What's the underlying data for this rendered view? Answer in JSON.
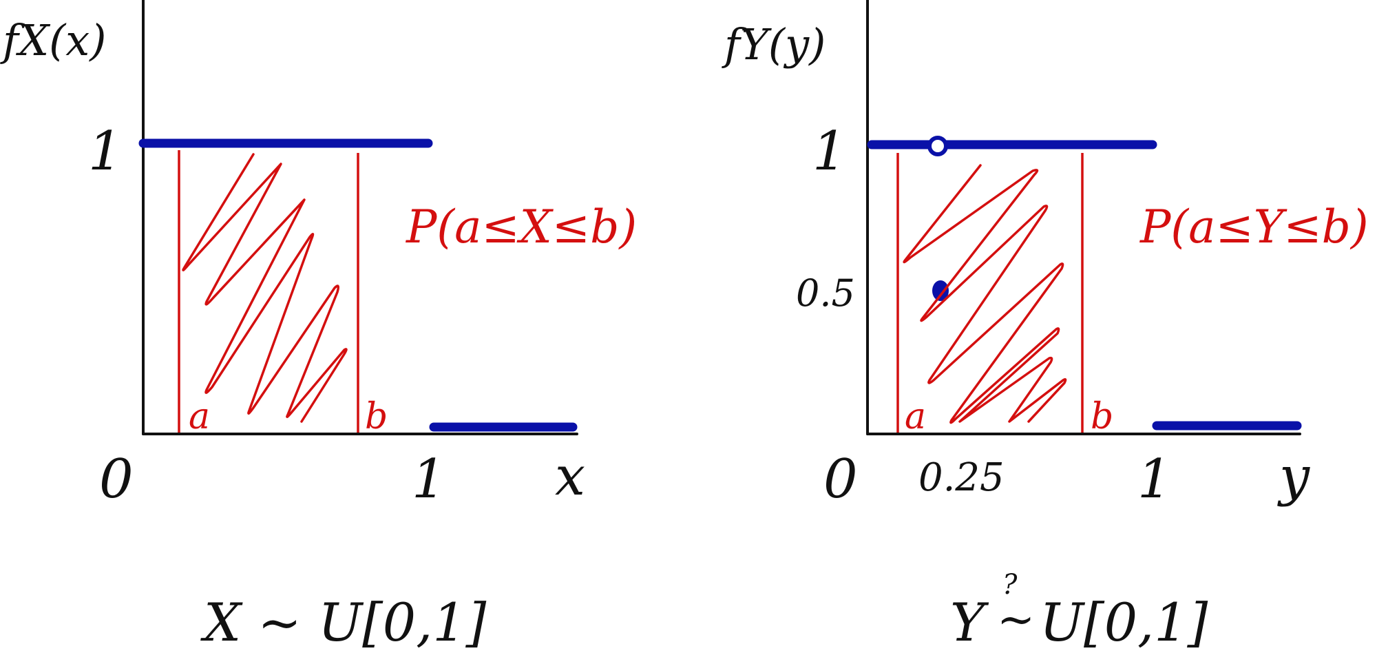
{
  "colors": {
    "pdf": "#0a11a8",
    "shade": "#d40f0f",
    "ink": "#111111"
  },
  "left": {
    "ylabel": "fX(x)",
    "ytick_one": "1",
    "origin": "0",
    "xtick_one": "1",
    "xlabel": "x",
    "bound_a": "a",
    "bound_b": "b",
    "prob": "P(a≤X≤b)",
    "caption": "X ~ U[0,1]"
  },
  "right": {
    "ylabel": "fY(y)",
    "ytick_one": "1",
    "ytick_half": "0.5",
    "origin": "0",
    "xtick_quarter": "0.25",
    "xtick_one": "1",
    "xlabel": "y",
    "bound_a": "a",
    "bound_b": "b",
    "prob": "P(a≤Y≤b)",
    "caption_left": "Y",
    "caption_tilde": "~",
    "caption_q": "?",
    "caption_right": "U[0,1]"
  }
}
